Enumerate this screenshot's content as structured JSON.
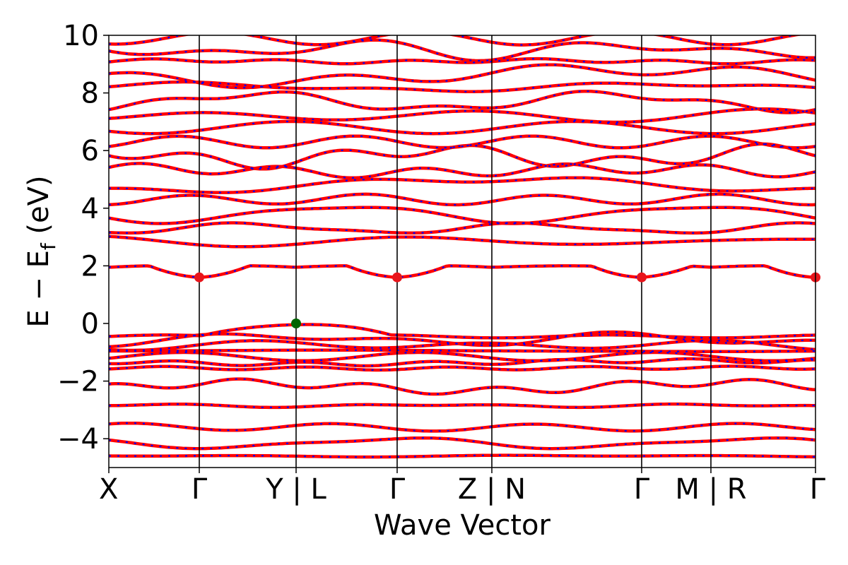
{
  "chart_data": {
    "type": "line",
    "title": "",
    "xlabel": "Wave Vector",
    "ylabel": {
      "prefix": "E − E",
      "subscript": "f",
      "suffix": " (eV)"
    },
    "ylim": [
      -5,
      10
    ],
    "yticks": [
      -4,
      -2,
      0,
      2,
      4,
      6,
      8,
      10
    ],
    "ytick_labels": [
      "−4",
      "−2",
      "0",
      "2",
      "4",
      "6",
      "8",
      "10"
    ],
    "x_range": [
      0,
      1
    ],
    "high_symmetry_points": [
      {
        "x": 0.0,
        "label": "X"
      },
      {
        "x": 0.128,
        "label": "Γ"
      },
      {
        "x": 0.265,
        "label": "Y | L"
      },
      {
        "x": 0.408,
        "label": "Γ"
      },
      {
        "x": 0.542,
        "label": "Z | N"
      },
      {
        "x": 0.754,
        "label": "Γ"
      },
      {
        "x": 0.852,
        "label": "M | R"
      },
      {
        "x": 1.0,
        "label": "Γ"
      }
    ],
    "band_colors": {
      "primary": "#ff0000",
      "secondary": "#0000ff"
    },
    "band_style": "red solid bands overlaid with blue dashed bands (nearly identical)",
    "band_energies_at_gamma": {
      "valence": [
        -0.35,
        -0.55,
        -0.75,
        -0.95,
        -1.15,
        -1.35,
        -1.55,
        -2.2,
        -2.85,
        -3.6,
        -4.15,
        -4.6
      ],
      "conduction": [
        1.6,
        2.85,
        3.3,
        3.8,
        4.3,
        4.8,
        5.3,
        5.8,
        6.3,
        6.8,
        7.2,
        7.7,
        8.2,
        8.6,
        9.1,
        9.5,
        9.9
      ]
    },
    "markers": [
      {
        "name": "CBM",
        "color": "#e8151b",
        "points": [
          {
            "x": 0.128,
            "y": 1.6
          },
          {
            "x": 0.408,
            "y": 1.6
          },
          {
            "x": 0.754,
            "y": 1.6
          },
          {
            "x": 1.0,
            "y": 1.6
          }
        ]
      },
      {
        "name": "VBM",
        "color": "#006400",
        "points": [
          {
            "x": 0.265,
            "y": 0.0
          }
        ]
      }
    ],
    "grid": false,
    "legend": "none"
  }
}
